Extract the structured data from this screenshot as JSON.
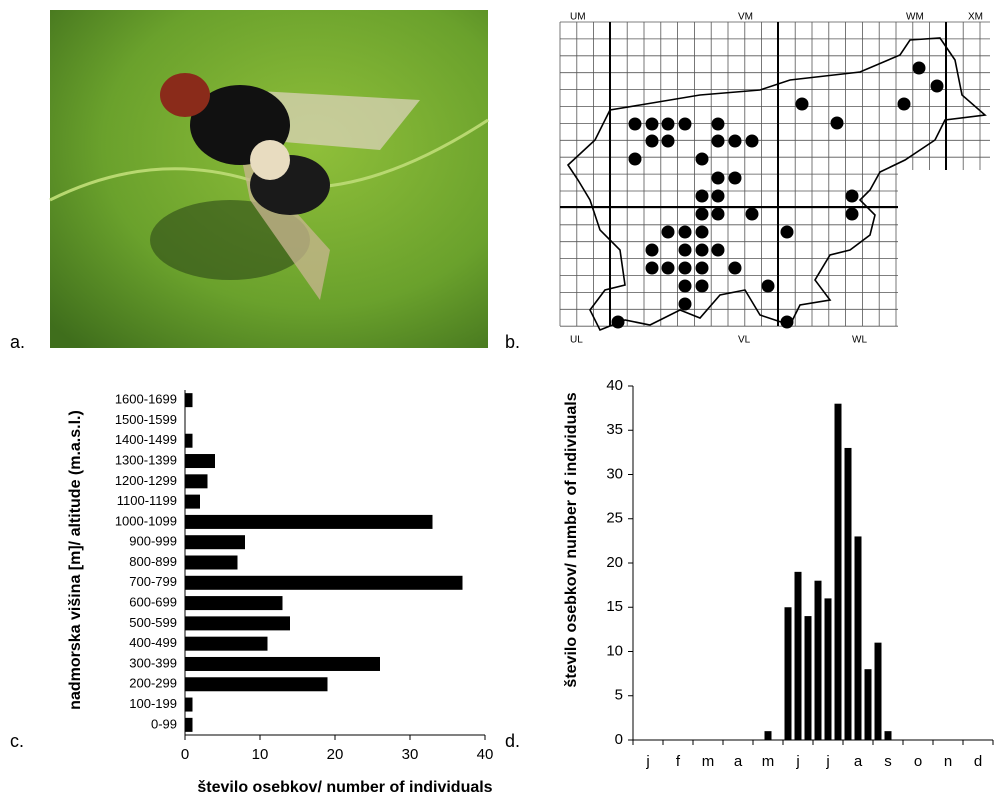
{
  "panels": {
    "labels": [
      "a.",
      "b.",
      "c.",
      "d."
    ]
  },
  "map": {
    "labels": [
      "UM",
      "VM",
      "WM",
      "XM",
      "UL",
      "VL",
      "WL"
    ]
  },
  "chart_data": [
    {
      "type": "barh",
      "xlabel": "število osebkov/ number of individuals",
      "ylabel": "nadmorska višina [m]/ altitude (m.a.s.l.)",
      "categories": [
        "0-99",
        "100-199",
        "200-299",
        "300-399",
        "400-499",
        "500-599",
        "600-699",
        "700-799",
        "800-899",
        "900-999",
        "1000-1099",
        "1100-1199",
        "1200-1299",
        "1300-1399",
        "1400-1499",
        "1500-1599",
        "1600-1699"
      ],
      "values": [
        1,
        1,
        19,
        26,
        11,
        14,
        13,
        37,
        7,
        8,
        33,
        2,
        3,
        4,
        1,
        0,
        1
      ],
      "color": "#000000",
      "xlim": [
        0,
        40
      ],
      "xticks": [
        0,
        10,
        20,
        30,
        40
      ],
      "grid": false
    },
    {
      "type": "bar",
      "ylabel": "število osebkov/ number of individuals",
      "categories": [
        null,
        "j",
        null,
        null,
        "f",
        null,
        null,
        "m",
        null,
        null,
        "a",
        null,
        null,
        "m",
        null,
        null,
        "j",
        null,
        null,
        "j",
        null,
        null,
        "a",
        null,
        null,
        "s",
        null,
        null,
        "o",
        null,
        null,
        "n",
        null,
        null,
        "d",
        null
      ],
      "values": [
        0,
        0,
        0,
        0,
        0,
        0,
        0,
        0,
        0,
        0,
        0,
        0,
        0,
        1,
        0,
        15,
        19,
        14,
        18,
        16,
        38,
        33,
        23,
        8,
        11,
        1,
        0,
        0,
        0,
        0,
        0,
        0,
        0,
        0,
        0,
        0
      ],
      "color": "#000000",
      "ylim": [
        0,
        40
      ],
      "yticks": [
        0,
        5,
        10,
        15,
        20,
        25,
        30,
        35,
        40
      ],
      "grid": false
    }
  ]
}
